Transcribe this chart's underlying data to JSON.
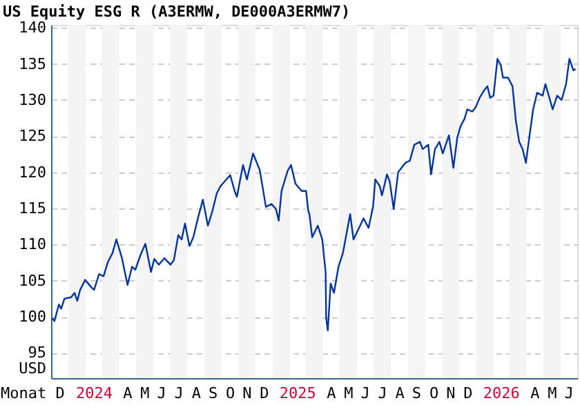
{
  "chart_data": {
    "type": "line",
    "title": "US Equity ESG R (A3ERMW, DE000A3ERMW7)",
    "xlabel": "Monat",
    "ylabel": "USD",
    "xlim": [
      "2023-12-01",
      "2026-07-01"
    ],
    "ylim": [
      91.5,
      140.4
    ],
    "yticks": [
      95,
      100,
      105,
      110,
      115,
      120,
      125,
      130,
      135,
      140
    ],
    "xticks": [
      {
        "value": "2023-12-16",
        "label": "D"
      },
      {
        "value": "2024-02-15",
        "label": "2024"
      },
      {
        "value": "2024-04-15",
        "label": "A"
      },
      {
        "value": "2024-05-16",
        "label": "M"
      },
      {
        "value": "2024-06-15",
        "label": "J"
      },
      {
        "value": "2024-07-16",
        "label": "J"
      },
      {
        "value": "2024-08-16",
        "label": "A"
      },
      {
        "value": "2024-09-15",
        "label": "S"
      },
      {
        "value": "2024-10-16",
        "label": "O"
      },
      {
        "value": "2024-11-15",
        "label": "N"
      },
      {
        "value": "2024-12-16",
        "label": "D"
      },
      {
        "value": "2025-02-14",
        "label": "2025"
      },
      {
        "value": "2025-04-15",
        "label": "A"
      },
      {
        "value": "2025-05-16",
        "label": "M"
      },
      {
        "value": "2025-06-15",
        "label": "J"
      },
      {
        "value": "2025-07-16",
        "label": "J"
      },
      {
        "value": "2025-08-16",
        "label": "A"
      },
      {
        "value": "2025-09-15",
        "label": "S"
      },
      {
        "value": "2025-10-16",
        "label": "O"
      },
      {
        "value": "2025-11-15",
        "label": "N"
      },
      {
        "value": "2025-12-16",
        "label": "D"
      },
      {
        "value": "2026-02-14",
        "label": "2026"
      },
      {
        "value": "2026-04-15",
        "label": "A"
      },
      {
        "value": "2026-05-16",
        "label": "M"
      },
      {
        "value": "2026-06-15",
        "label": "J"
      }
    ],
    "grid": "y",
    "bands": [
      {
        "axis": "x",
        "from": "2024-01-01",
        "to": "2024-02-01",
        "color": "#f4f4f4"
      },
      {
        "axis": "x",
        "from": "2024-03-01",
        "to": "2024-04-01",
        "color": "#f4f4f4"
      },
      {
        "axis": "x",
        "from": "2024-05-01",
        "to": "2024-06-01",
        "color": "#f4f4f4"
      },
      {
        "axis": "x",
        "from": "2024-07-01",
        "to": "2024-08-01",
        "color": "#f4f4f4"
      },
      {
        "axis": "x",
        "from": "2024-09-01",
        "to": "2024-10-01",
        "color": "#f4f4f4"
      },
      {
        "axis": "x",
        "from": "2024-11-01",
        "to": "2024-12-01",
        "color": "#f4f4f4"
      },
      {
        "axis": "x",
        "from": "2025-01-01",
        "to": "2025-02-01",
        "color": "#f4f4f4"
      },
      {
        "axis": "x",
        "from": "2025-03-01",
        "to": "2025-04-01",
        "color": "#f4f4f4"
      },
      {
        "axis": "x",
        "from": "2025-05-01",
        "to": "2025-06-01",
        "color": "#f4f4f4"
      },
      {
        "axis": "x",
        "from": "2025-07-01",
        "to": "2025-08-01",
        "color": "#f4f4f4"
      },
      {
        "axis": "x",
        "from": "2025-09-01",
        "to": "2025-10-01",
        "color": "#f4f4f4"
      },
      {
        "axis": "x",
        "from": "2025-11-01",
        "to": "2025-12-01",
        "color": "#f4f4f4"
      },
      {
        "axis": "x",
        "from": "2026-01-01",
        "to": "2026-02-01",
        "color": "#f4f4f4"
      },
      {
        "axis": "x",
        "from": "2026-03-01",
        "to": "2026-04-01",
        "color": "#f4f4f4"
      },
      {
        "axis": "x",
        "from": "2026-05-01",
        "to": "2026-06-01",
        "color": "#f4f4f4"
      }
    ],
    "series": [
      {
        "color": "#0033a0",
        "x": [
          "2023-12-03",
          "2023-12-07",
          "2023-12-15",
          "2023-12-19",
          "2023-12-25",
          "2024-01-06",
          "2024-01-12",
          "2024-01-17",
          "2024-01-22",
          "2024-01-31",
          "2024-02-12",
          "2024-02-16",
          "2024-02-25",
          "2024-03-04",
          "2024-03-12",
          "2024-03-20",
          "2024-03-27",
          "2024-04-06",
          "2024-04-16",
          "2024-04-24",
          "2024-04-30",
          "2024-05-09",
          "2024-05-18",
          "2024-05-28",
          "2024-06-03",
          "2024-06-11",
          "2024-06-21",
          "2024-07-02",
          "2024-07-08",
          "2024-07-16",
          "2024-07-22",
          "2024-07-28",
          "2024-08-05",
          "2024-08-12",
          "2024-08-20",
          "2024-08-29",
          "2024-09-07",
          "2024-09-15",
          "2024-09-23",
          "2024-09-30",
          "2024-10-17",
          "2024-10-25",
          "2024-10-29",
          "2024-11-09",
          "2024-11-16",
          "2024-11-27",
          "2024-12-09",
          "2024-12-20",
          "2024-12-30",
          "2025-01-07",
          "2025-01-12",
          "2025-01-17",
          "2025-01-28",
          "2025-02-03",
          "2025-02-11",
          "2025-02-22",
          "2025-03-02",
          "2025-03-06",
          "2025-03-08",
          "2025-03-13",
          "2025-03-23",
          "2025-03-31",
          "2025-04-06",
          "2025-04-07",
          "2025-04-10",
          "2025-04-15",
          "2025-04-21",
          "2025-04-29",
          "2025-05-07",
          "2025-05-13",
          "2025-05-20",
          "2025-05-26",
          "2025-06-05",
          "2025-06-13",
          "2025-06-22",
          "2025-06-30",
          "2025-07-04",
          "2025-07-12",
          "2025-07-16",
          "2025-07-25",
          "2025-07-30",
          "2025-08-06",
          "2025-08-14",
          "2025-08-27",
          "2025-09-04",
          "2025-09-12",
          "2025-09-22",
          "2025-09-27",
          "2025-10-07",
          "2025-10-12",
          "2025-10-19",
          "2025-10-27",
          "2025-11-02",
          "2025-11-13",
          "2025-11-21",
          "2025-11-28",
          "2025-12-04",
          "2025-12-11",
          "2025-12-16",
          "2025-12-25",
          "2025-12-31",
          "2026-01-07",
          "2026-01-14",
          "2026-01-21",
          "2026-01-26",
          "2026-02-01",
          "2026-02-08",
          "2026-02-14",
          "2026-02-18",
          "2026-02-27",
          "2026-03-07",
          "2026-03-13",
          "2026-03-19",
          "2026-03-25",
          "2026-03-31",
          "2026-04-06",
          "2026-04-13",
          "2026-04-20",
          "2026-04-30",
          "2026-05-05",
          "2026-05-11",
          "2026-05-18",
          "2026-05-26",
          "2026-06-03",
          "2026-06-11",
          "2026-06-17",
          "2026-06-24",
          "2026-06-28"
        ],
        "values": [
          99.8,
          99.4,
          101.7,
          101.1,
          102.5,
          102.7,
          103.3,
          102.2,
          103.7,
          105.1,
          104.0,
          103.7,
          105.9,
          105.6,
          107.6,
          108.8,
          110.7,
          108.1,
          104.4,
          106.9,
          106.5,
          108.5,
          110.1,
          106.2,
          108.0,
          107.2,
          108.1,
          107.2,
          107.8,
          111.3,
          110.7,
          112.9,
          109.8,
          111.0,
          113.6,
          116.2,
          112.6,
          114.6,
          117.1,
          118.1,
          119.6,
          117.4,
          116.6,
          121.0,
          119.0,
          122.6,
          120.3,
          115.2,
          115.6,
          114.9,
          113.3,
          117.4,
          120.2,
          121.0,
          118.4,
          117.4,
          117.4,
          114.6,
          114.2,
          111.0,
          112.6,
          110.7,
          106.2,
          99.8,
          98.1,
          104.6,
          103.3,
          106.9,
          108.8,
          111.3,
          114.2,
          110.7,
          112.3,
          113.6,
          112.3,
          115.2,
          119.0,
          118.1,
          116.8,
          119.7,
          118.7,
          114.9,
          120.0,
          121.3,
          121.6,
          123.8,
          124.2,
          123.2,
          123.8,
          119.7,
          123.2,
          124.2,
          122.6,
          125.1,
          120.6,
          124.8,
          126.4,
          127.4,
          128.7,
          128.4,
          129.0,
          130.3,
          131.2,
          131.9,
          130.3,
          130.6,
          135.7,
          134.8,
          133.1,
          133.1,
          131.9,
          127.1,
          124.2,
          123.2,
          121.3,
          124.8,
          128.7,
          131.0,
          130.6,
          132.2,
          130.6,
          128.7,
          130.6,
          130.0,
          132.2,
          135.7,
          134.1,
          134.3
        ]
      }
    ]
  }
}
